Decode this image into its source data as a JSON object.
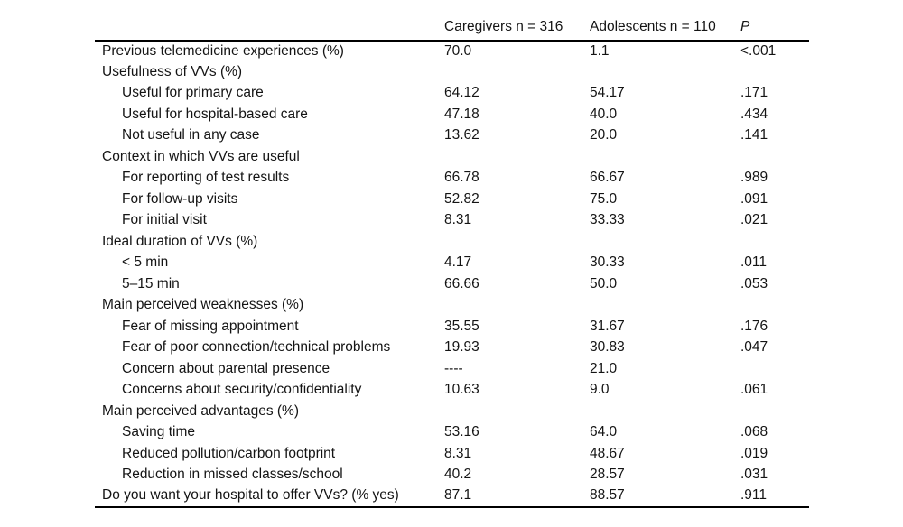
{
  "table": {
    "columns": {
      "label": "",
      "caregivers": "Caregivers n = 316",
      "adolescents": "Adolescents n = 110",
      "p": "P"
    },
    "rows": [
      {
        "label": "Previous telemedicine experiences (%)",
        "indent": false,
        "caregivers": "70.0",
        "adolescents": "1.1",
        "p": "<.001"
      },
      {
        "label": "Usefulness of VVs (%)",
        "indent": false,
        "caregivers": "",
        "adolescents": "",
        "p": ""
      },
      {
        "label": "Useful for primary care",
        "indent": true,
        "caregivers": "64.12",
        "adolescents": "54.17",
        "p": ".171"
      },
      {
        "label": "Useful for hospital-based care",
        "indent": true,
        "caregivers": "47.18",
        "adolescents": "40.0",
        "p": ".434"
      },
      {
        "label": "Not useful in any case",
        "indent": true,
        "caregivers": "13.62",
        "adolescents": "20.0",
        "p": ".141"
      },
      {
        "label": "Context in which VVs are useful",
        "indent": false,
        "caregivers": "",
        "adolescents": "",
        "p": ""
      },
      {
        "label": "For reporting of test results",
        "indent": true,
        "caregivers": "66.78",
        "adolescents": "66.67",
        "p": ".989"
      },
      {
        "label": "For follow-up visits",
        "indent": true,
        "caregivers": "52.82",
        "adolescents": "75.0",
        "p": ".091"
      },
      {
        "label": "For initial visit",
        "indent": true,
        "caregivers": "8.31",
        "adolescents": "33.33",
        "p": ".021"
      },
      {
        "label": "Ideal duration of VVs (%)",
        "indent": false,
        "caregivers": "",
        "adolescents": "",
        "p": ""
      },
      {
        "label": "< 5 min",
        "indent": true,
        "caregivers": "4.17",
        "adolescents": "30.33",
        "p": ".011"
      },
      {
        "label": "5–15 min",
        "indent": true,
        "caregivers": "66.66",
        "adolescents": "50.0",
        "p": ".053"
      },
      {
        "label": "Main perceived weaknesses (%)",
        "indent": false,
        "caregivers": "",
        "adolescents": "",
        "p": ""
      },
      {
        "label": "Fear of missing appointment",
        "indent": true,
        "caregivers": "35.55",
        "adolescents": "31.67",
        "p": ".176"
      },
      {
        "label": "Fear of poor connection/technical problems",
        "indent": true,
        "caregivers": "19.93",
        "adolescents": "30.83",
        "p": ".047"
      },
      {
        "label": "Concern about parental presence",
        "indent": true,
        "caregivers": "----",
        "adolescents": "21.0",
        "p": ""
      },
      {
        "label": "Concerns about security/confidentiality",
        "indent": true,
        "caregivers": "10.63",
        "adolescents": "9.0",
        "p": ".061"
      },
      {
        "label": "Main perceived advantages (%)",
        "indent": false,
        "caregivers": "",
        "adolescents": "",
        "p": ""
      },
      {
        "label": "Saving time",
        "indent": true,
        "caregivers": "53.16",
        "adolescents": "64.0",
        "p": ".068"
      },
      {
        "label": "Reduced pollution/carbon footprint",
        "indent": true,
        "caregivers": "8.31",
        "adolescents": "48.67",
        "p": ".019"
      },
      {
        "label": "Reduction in missed classes/school",
        "indent": true,
        "caregivers": "40.2",
        "adolescents": "28.57",
        "p": ".031"
      },
      {
        "label": "Do you want your hospital to offer VVs? (% yes)",
        "indent": false,
        "caregivers": "87.1",
        "adolescents": "88.57",
        "p": ".911"
      }
    ]
  }
}
